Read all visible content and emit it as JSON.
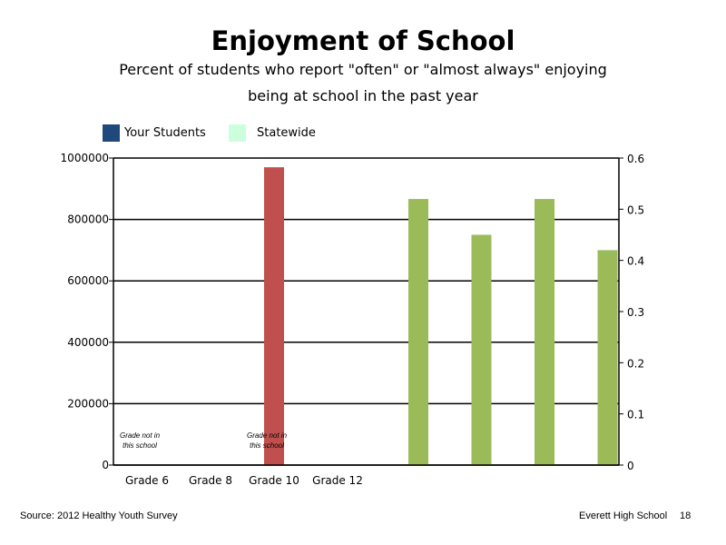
{
  "chart_data": {
    "type": "bar",
    "title": "Enjoyment of School",
    "subtitle_lines": [
      "Percent of students who report \"often\" or \"almost always\" enjoying",
      "being at school in the past year"
    ],
    "categories": [
      "Grade 6",
      "Grade 8",
      "Grade 10",
      "Grade 12"
    ],
    "legend": {
      "placement": "top-left",
      "items": [
        {
          "label": "Your Students",
          "color": "#1f497d"
        },
        {
          "label": "Statewide",
          "color": "#ccffdd"
        }
      ]
    },
    "y_left": {
      "ylim": [
        0,
        1000000
      ],
      "ticks": [
        "0",
        "200000",
        "400000",
        "600000",
        "800000",
        "1000000"
      ]
    },
    "y_right": {
      "ylim": [
        0,
        0.6
      ],
      "ticks": [
        "0",
        "0.1",
        "0.2",
        "0.3",
        "0.4",
        "0.5",
        "0.6"
      ]
    },
    "grid": true,
    "series": [
      {
        "axis": "left",
        "color": "#c0504d",
        "bars": [
          {
            "category": "Grade 10",
            "value": 970000
          }
        ]
      },
      {
        "axis": "right",
        "color": "#9bbb59",
        "values": [
          0.52,
          0.45,
          0.52,
          0.42
        ]
      }
    ],
    "annotations": [
      {
        "category": "Grade 6",
        "lines": [
          "Grade not in",
          "this school"
        ]
      },
      {
        "category": "Grade 10",
        "lines": [
          "Grade not in",
          "this school"
        ]
      }
    ]
  },
  "footer": {
    "source": "Source: 2012 Healthy Youth Survey",
    "school": "Everett High School",
    "page": "18"
  }
}
